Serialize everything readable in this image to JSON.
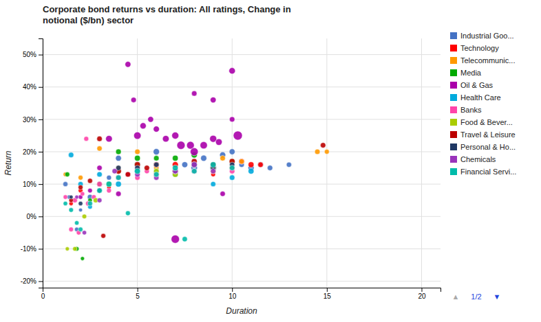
{
  "chart_data": {
    "type": "scatter",
    "title": "Corporate bond returns vs duration: All ratings, Change in\nnotional ($/bn) sector",
    "x_label": "Duration",
    "y_label": "Return",
    "xlim": [
      0,
      21
    ],
    "ylim": [
      -0.22,
      0.55
    ],
    "xticks": [
      0,
      5,
      10,
      15,
      20
    ],
    "yticks": [
      {
        "value": -0.2,
        "label": "-20%"
      },
      {
        "value": -0.1,
        "label": "-10%"
      },
      {
        "value": 0.0,
        "label": "0%"
      },
      {
        "value": 0.1,
        "label": "10%"
      },
      {
        "value": 0.2,
        "label": "20%"
      },
      {
        "value": 0.3,
        "label": "30%"
      },
      {
        "value": 0.4,
        "label": "40%"
      },
      {
        "value": 0.5,
        "label": "50%"
      }
    ],
    "grid": true,
    "legend": "right",
    "annotations": [
      "▲",
      "1/2",
      "▼"
    ],
    "series": [
      {
        "name": "Industrial Goo...",
        "color": "#4472C4",
        "x": [
          1.2,
          1.4,
          1.8,
          2.0,
          2.5,
          3.0,
          3.5,
          4.0,
          5.0,
          6.0,
          7.0,
          7.5,
          8.0,
          8.5,
          9.0,
          9.5,
          10.0,
          10.5,
          11.0,
          12.0,
          11.5,
          13.0
        ],
        "values": [
          0.1,
          0.06,
          -0.04,
          0.02,
          0.06,
          0.08,
          0.12,
          0.18,
          0.16,
          0.2,
          0.14,
          0.16,
          0.15,
          0.18,
          0.15,
          0.19,
          0.2,
          0.16,
          0.15,
          0.15,
          0.16,
          0.16
        ],
        "sizes": [
          25,
          18,
          20,
          15,
          30,
          28,
          25,
          35,
          45,
          40,
          32,
          36,
          42,
          38,
          48,
          38,
          35,
          30,
          38,
          30,
          32,
          28
        ]
      },
      {
        "name": "Technology",
        "color": "#FF0000",
        "x": [
          1.5,
          2.0,
          3.0,
          3.5,
          4.0,
          5.0,
          6.0,
          7.0,
          8.0,
          9.0,
          10.0,
          10.5,
          11.0,
          11.5
        ],
        "values": [
          0.04,
          0.08,
          0.1,
          0.09,
          0.12,
          0.14,
          0.13,
          0.16,
          0.14,
          0.13,
          0.15,
          0.17,
          0.16,
          0.16
        ],
        "sizes": [
          18,
          22,
          20,
          18,
          26,
          30,
          34,
          38,
          28,
          22,
          30,
          35,
          34,
          30
        ]
      },
      {
        "name": "Telecommunic...",
        "color": "#FF9900",
        "x": [
          1.2,
          2.0,
          3.0,
          4.0,
          5.0,
          6.0,
          7.0,
          8.0,
          9.0,
          9.5,
          10.5,
          14.5,
          15.0
        ],
        "values": [
          0.13,
          0.12,
          0.21,
          0.15,
          0.2,
          0.15,
          0.14,
          0.16,
          0.14,
          0.18,
          0.17,
          0.2,
          0.2
        ],
        "sizes": [
          20,
          24,
          28,
          24,
          30,
          28,
          30,
          34,
          30,
          30,
          28,
          30,
          24
        ]
      },
      {
        "name": "Media",
        "color": "#00AA00",
        "x": [
          1.3,
          1.8,
          2.1,
          2.5,
          3.0,
          4.0,
          5.0,
          6.0,
          7.0,
          8.0,
          9.0,
          10.0
        ],
        "values": [
          0.13,
          -0.1,
          -0.13,
          0.05,
          0.1,
          0.2,
          0.18,
          0.18,
          0.18,
          0.19,
          0.15,
          0.17
        ],
        "sizes": [
          24,
          20,
          16,
          20,
          28,
          32,
          34,
          30,
          34,
          38,
          30,
          28
        ]
      },
      {
        "name": "Oil & Gas",
        "color": "#AA00AA",
        "x": [
          2.0,
          2.5,
          3.0,
          3.5,
          4.0,
          4.5,
          4.8,
          5.0,
          5.3,
          5.7,
          6.0,
          6.5,
          7.0,
          7.3,
          7.8,
          8.0,
          8.5,
          9.0,
          9.3,
          9.5,
          10.0,
          10.3,
          7.0,
          8.0,
          9.0,
          10.0
        ],
        "values": [
          0.06,
          0.08,
          0.15,
          0.24,
          0.07,
          0.47,
          0.36,
          0.25,
          0.28,
          0.3,
          0.27,
          0.24,
          0.25,
          0.22,
          0.22,
          0.2,
          0.22,
          0.24,
          0.23,
          0.07,
          0.45,
          0.25,
          -0.07,
          0.38,
          0.36,
          0.3
        ],
        "sizes": [
          20,
          22,
          28,
          45,
          30,
          35,
          30,
          55,
          40,
          35,
          38,
          45,
          50,
          70,
          60,
          65,
          55,
          50,
          45,
          28,
          42,
          85,
          70,
          30,
          35,
          30
        ]
      },
      {
        "name": "Health Care",
        "color": "#00AADD",
        "x": [
          1.5,
          2.0,
          2.5,
          3.0,
          3.5,
          4.0,
          5.0,
          6.0,
          7.0,
          8.0,
          9.0,
          10.0,
          11.0
        ],
        "values": [
          0.19,
          0.1,
          0.03,
          0.13,
          0.1,
          0.1,
          0.14,
          0.14,
          0.13,
          0.14,
          0.1,
          0.12,
          0.14
        ],
        "sizes": [
          30,
          28,
          22,
          30,
          28,
          34,
          38,
          30,
          34,
          30,
          28,
          30,
          34
        ]
      },
      {
        "name": "Banks",
        "color": "#FF44AA",
        "x": [
          1.2,
          1.5,
          1.7,
          1.9,
          2.1,
          2.4,
          2.7,
          3.0,
          3.5,
          4.0,
          4.5,
          5.0,
          5.5,
          6.0,
          7.0,
          8.0,
          9.0,
          10.0,
          2.3
        ],
        "values": [
          0.06,
          -0.04,
          0.05,
          -0.05,
          0.07,
          0.04,
          0.06,
          0.1,
          0.08,
          0.12,
          0.13,
          0.12,
          0.14,
          0.13,
          0.14,
          0.14,
          0.16,
          0.14,
          0.24
        ],
        "sizes": [
          20,
          22,
          26,
          22,
          20,
          26,
          22,
          30,
          24,
          30,
          28,
          28,
          26,
          30,
          34,
          30,
          28,
          30,
          24
        ]
      },
      {
        "name": "Food & Bever...",
        "color": "#AACC00",
        "x": [
          1.3,
          1.7,
          2.2,
          2.8,
          3.5,
          4.0,
          5.0,
          6.0,
          7.0,
          8.0,
          9.0,
          10.0
        ],
        "values": [
          -0.1,
          -0.1,
          0.0,
          0.05,
          0.1,
          0.14,
          0.16,
          0.14,
          0.13,
          0.16,
          0.15,
          0.17
        ],
        "sizes": [
          16,
          20,
          22,
          26,
          28,
          30,
          34,
          30,
          34,
          30,
          34,
          30
        ]
      },
      {
        "name": "Travel & Leisure",
        "color": "#BB0000",
        "x": [
          1.5,
          2.0,
          2.5,
          3.0,
          3.2,
          4.0,
          4.5,
          5.0,
          5.5,
          6.0,
          7.0,
          8.0,
          9.0,
          10.0,
          14.8
        ],
        "values": [
          0.05,
          0.09,
          0.11,
          0.24,
          -0.06,
          0.14,
          0.13,
          0.16,
          0.15,
          0.16,
          0.14,
          0.17,
          0.16,
          0.17,
          0.22
        ],
        "sizes": [
          20,
          24,
          26,
          30,
          24,
          34,
          30,
          34,
          30,
          34,
          38,
          34,
          30,
          34,
          30
        ]
      },
      {
        "name": "Personal & Ho...",
        "color": "#1F3864",
        "x": [
          1.5,
          2.0,
          3.0,
          4.0,
          5.0,
          6.0,
          7.0,
          8.0,
          9.0,
          10.0
        ],
        "values": [
          0.06,
          0.04,
          0.08,
          0.15,
          0.15,
          0.16,
          0.14,
          0.16,
          0.15,
          0.16
        ],
        "sizes": [
          16,
          20,
          24,
          28,
          30,
          28,
          30,
          34,
          30,
          28
        ]
      },
      {
        "name": "Chemicals",
        "color": "#9933BB",
        "x": [
          1.8,
          2.2,
          3.0,
          3.8,
          5.0,
          6.0,
          7.0,
          8.0,
          9.0
        ],
        "values": [
          0.06,
          -0.05,
          0.05,
          0.14,
          0.13,
          0.12,
          0.14,
          0.16,
          0.14
        ],
        "sizes": [
          16,
          20,
          24,
          28,
          30,
          28,
          30,
          34,
          30
        ]
      },
      {
        "name": "Financial Servi...",
        "color": "#00BBAA",
        "x": [
          1.2,
          1.5,
          1.8,
          2.0,
          2.5,
          3.0,
          3.5,
          4.0,
          5.0,
          6.0,
          7.0,
          8.0,
          9.0,
          10.0,
          4.5,
          7.5
        ],
        "values": [
          0.04,
          0.02,
          -0.02,
          -0.04,
          0.04,
          0.08,
          0.1,
          0.12,
          0.14,
          0.13,
          0.15,
          0.14,
          0.16,
          0.15,
          0.01,
          -0.07
        ],
        "sizes": [
          20,
          22,
          20,
          22,
          26,
          30,
          34,
          30,
          34,
          30,
          34,
          30,
          34,
          30,
          24,
          28
        ]
      }
    ]
  }
}
